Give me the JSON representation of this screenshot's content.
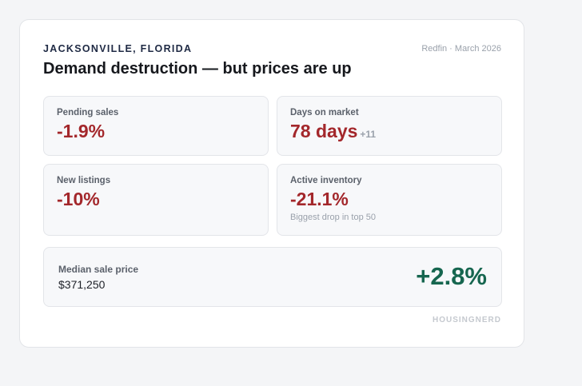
{
  "header": {
    "location": "JACKSONVILLE, FLORIDA",
    "title": "Demand destruction — but prices are up",
    "source": "Redfin · March 2026"
  },
  "metrics": [
    {
      "label": "Pending sales",
      "value": "-1.9%",
      "delta": "",
      "note": ""
    },
    {
      "label": "Days on market",
      "value": "78 days",
      "delta": "+11",
      "note": ""
    },
    {
      "label": "New listings",
      "value": "-10%",
      "delta": "",
      "note": ""
    },
    {
      "label": "Active inventory",
      "value": "-21.1%",
      "delta": "",
      "note": "Biggest drop in top 50"
    }
  ],
  "price": {
    "label": "Median sale price",
    "amount": "$371,250",
    "change": "+2.8%"
  },
  "footer": {
    "brand": "HOUSINGNERD"
  },
  "colors": {
    "negative": "#a3272b",
    "positive": "#16664f",
    "muted": "#9aa1ab",
    "eyebrow": "#1f2a44"
  }
}
